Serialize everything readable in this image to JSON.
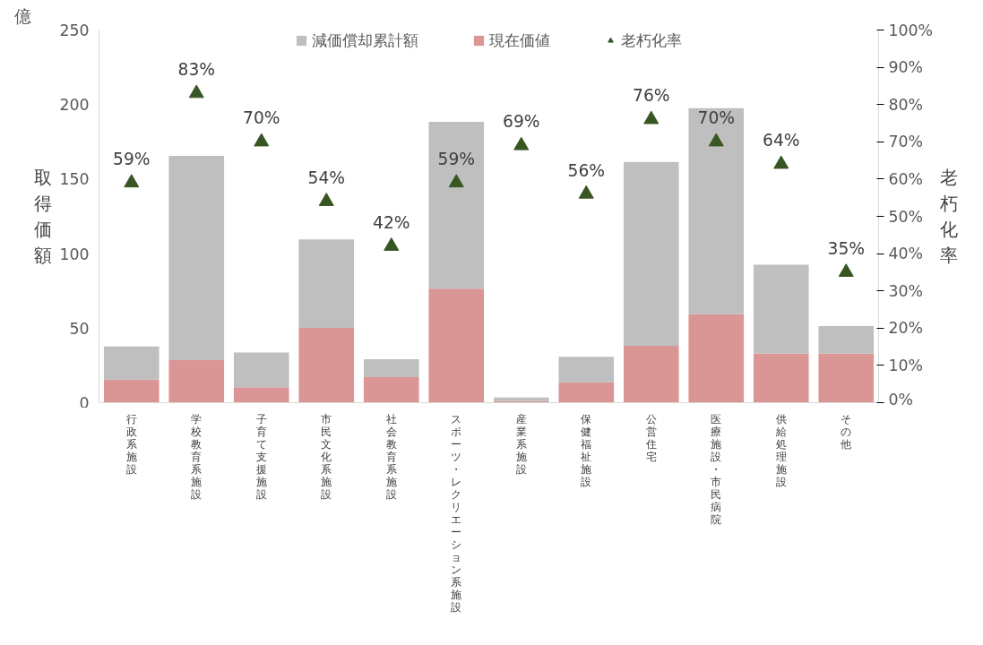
{
  "chart_data": {
    "type": "bar",
    "stacked": true,
    "categories": [
      "行政系施設",
      "学校教育系施設",
      "子育て支援施設",
      "市民文化系施設",
      "社会教育系施設",
      "スポーツ・レクリエーション系施設",
      "産業系施設",
      "保健福祉施設",
      "公営住宅",
      "医療施設・市民病院",
      "供給処理施設",
      "その他"
    ],
    "series": [
      {
        "name": "現在価値",
        "color": "#da9694",
        "values": [
          15.4,
          28.5,
          10.3,
          50.2,
          17.1,
          76.5,
          1.1,
          13.7,
          38.2,
          59.4,
          33.1,
          33.1
        ]
      },
      {
        "name": "減価償却累計額",
        "color": "#bfbfbf",
        "values": [
          22.3,
          137,
          23.4,
          59.4,
          12,
          111.9,
          2.3,
          17.1,
          123.3,
          138.1,
          59.4,
          18.3
        ]
      },
      {
        "name": "老朽化率",
        "type": "scatter",
        "axis": "y2",
        "marker": "triangle",
        "color": "#375623",
        "values": [
          59,
          83,
          70,
          54,
          42,
          59,
          69,
          56,
          76,
          70,
          64,
          35
        ],
        "value_labels": [
          "59%",
          "83%",
          "70%",
          "54%",
          "42%",
          "59%",
          "69%",
          "56%",
          "76%",
          "70%",
          "64%",
          "35%"
        ]
      }
    ],
    "ylabel": "取得価額",
    "y2label": "老朽化率",
    "annotations": [
      "億"
    ],
    "ylim": [
      0,
      250
    ],
    "yticks": [
      0,
      50,
      100,
      150,
      200,
      250
    ],
    "y2lim": [
      0,
      100
    ],
    "y2ticks": [
      {
        "value": 0,
        "label": "0%"
      },
      {
        "value": 10,
        "label": "10%"
      },
      {
        "value": 20,
        "label": "20%"
      },
      {
        "value": 30,
        "label": "30%"
      },
      {
        "value": 40,
        "label": "40%"
      },
      {
        "value": 50,
        "label": "50%"
      },
      {
        "value": 60,
        "label": "60%"
      },
      {
        "value": 70,
        "label": "70%"
      },
      {
        "value": 80,
        "label": "80%"
      },
      {
        "value": 90,
        "label": "90%"
      },
      {
        "value": 100,
        "label": "100%"
      }
    ],
    "legend": "top",
    "grid": false
  }
}
